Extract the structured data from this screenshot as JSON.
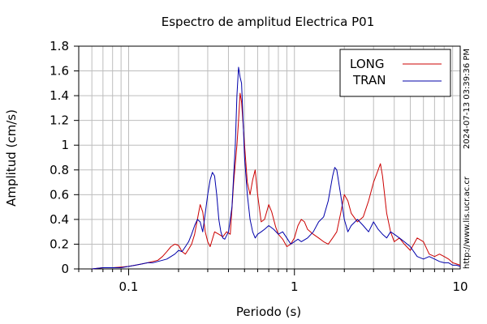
{
  "chart_data": {
    "type": "line",
    "title": "Espectro de amplitud Electrica P01",
    "xlabel": "Periodo (s)",
    "ylabel": "Amplitud (cm/s)",
    "x_scale": "log",
    "xlim": [
      0.05,
      10
    ],
    "ylim": [
      0,
      1.8
    ],
    "x_tick_labels": [
      {
        "value": 0.1,
        "label": "0.1"
      },
      {
        "value": 1,
        "label": "1"
      },
      {
        "value": 10,
        "label": "10"
      }
    ],
    "y_tick_labels": [
      "0",
      "0.2",
      "0.4",
      "0.6",
      "0.8",
      "1",
      "1.2",
      "1.4",
      "1.6",
      "1.8"
    ],
    "grid": true,
    "legend_position": "top-right",
    "side_annotations": {
      "timestamp": "2024-07-13 03:39:36 PM",
      "url": "http://www.lis.ucr.ac.cr"
    },
    "series": [
      {
        "name": "LONG",
        "color": "#cc0000",
        "points": [
          [
            0.06,
            0.0
          ],
          [
            0.07,
            0.01
          ],
          [
            0.08,
            0.01
          ],
          [
            0.09,
            0.015
          ],
          [
            0.1,
            0.02
          ],
          [
            0.11,
            0.03
          ],
          [
            0.12,
            0.04
          ],
          [
            0.13,
            0.05
          ],
          [
            0.14,
            0.06
          ],
          [
            0.15,
            0.07
          ],
          [
            0.16,
            0.1
          ],
          [
            0.17,
            0.14
          ],
          [
            0.18,
            0.18
          ],
          [
            0.19,
            0.2
          ],
          [
            0.2,
            0.19
          ],
          [
            0.21,
            0.14
          ],
          [
            0.22,
            0.12
          ],
          [
            0.23,
            0.16
          ],
          [
            0.24,
            0.2
          ],
          [
            0.25,
            0.28
          ],
          [
            0.26,
            0.4
          ],
          [
            0.27,
            0.52
          ],
          [
            0.28,
            0.46
          ],
          [
            0.29,
            0.3
          ],
          [
            0.3,
            0.22
          ],
          [
            0.31,
            0.18
          ],
          [
            0.33,
            0.3
          ],
          [
            0.35,
            0.28
          ],
          [
            0.37,
            0.26
          ],
          [
            0.39,
            0.3
          ],
          [
            0.41,
            0.28
          ],
          [
            0.43,
            0.7
          ],
          [
            0.45,
            1.0
          ],
          [
            0.46,
            1.2
          ],
          [
            0.47,
            1.42
          ],
          [
            0.48,
            1.35
          ],
          [
            0.5,
            1.0
          ],
          [
            0.52,
            0.7
          ],
          [
            0.54,
            0.6
          ],
          [
            0.56,
            0.72
          ],
          [
            0.58,
            0.8
          ],
          [
            0.6,
            0.6
          ],
          [
            0.63,
            0.38
          ],
          [
            0.66,
            0.4
          ],
          [
            0.7,
            0.52
          ],
          [
            0.73,
            0.46
          ],
          [
            0.77,
            0.34
          ],
          [
            0.8,
            0.28
          ],
          [
            0.85,
            0.24
          ],
          [
            0.9,
            0.18
          ],
          [
            0.95,
            0.2
          ],
          [
            1.0,
            0.25
          ],
          [
            1.05,
            0.35
          ],
          [
            1.1,
            0.4
          ],
          [
            1.15,
            0.38
          ],
          [
            1.2,
            0.32
          ],
          [
            1.3,
            0.28
          ],
          [
            1.4,
            0.25
          ],
          [
            1.5,
            0.22
          ],
          [
            1.6,
            0.2
          ],
          [
            1.7,
            0.25
          ],
          [
            1.8,
            0.3
          ],
          [
            1.9,
            0.45
          ],
          [
            2.0,
            0.6
          ],
          [
            2.1,
            0.55
          ],
          [
            2.2,
            0.45
          ],
          [
            2.4,
            0.38
          ],
          [
            2.6,
            0.42
          ],
          [
            2.8,
            0.55
          ],
          [
            3.0,
            0.7
          ],
          [
            3.2,
            0.8
          ],
          [
            3.3,
            0.85
          ],
          [
            3.4,
            0.75
          ],
          [
            3.6,
            0.45
          ],
          [
            3.8,
            0.3
          ],
          [
            4.0,
            0.22
          ],
          [
            4.3,
            0.25
          ],
          [
            4.6,
            0.2
          ],
          [
            5.0,
            0.15
          ],
          [
            5.5,
            0.25
          ],
          [
            6.0,
            0.22
          ],
          [
            6.5,
            0.12
          ],
          [
            7.0,
            0.1
          ],
          [
            7.5,
            0.12
          ],
          [
            8.0,
            0.1
          ],
          [
            8.5,
            0.08
          ],
          [
            9.0,
            0.05
          ],
          [
            9.5,
            0.04
          ],
          [
            10.0,
            0.03
          ]
        ]
      },
      {
        "name": "TRAN",
        "color": "#0000aa",
        "points": [
          [
            0.06,
            0.0
          ],
          [
            0.07,
            0.01
          ],
          [
            0.08,
            0.01
          ],
          [
            0.09,
            0.01
          ],
          [
            0.1,
            0.02
          ],
          [
            0.11,
            0.03
          ],
          [
            0.12,
            0.04
          ],
          [
            0.13,
            0.05
          ],
          [
            0.14,
            0.05
          ],
          [
            0.15,
            0.06
          ],
          [
            0.16,
            0.07
          ],
          [
            0.17,
            0.08
          ],
          [
            0.18,
            0.1
          ],
          [
            0.19,
            0.12
          ],
          [
            0.2,
            0.15
          ],
          [
            0.21,
            0.14
          ],
          [
            0.22,
            0.18
          ],
          [
            0.23,
            0.22
          ],
          [
            0.24,
            0.28
          ],
          [
            0.25,
            0.35
          ],
          [
            0.26,
            0.4
          ],
          [
            0.27,
            0.38
          ],
          [
            0.28,
            0.3
          ],
          [
            0.29,
            0.45
          ],
          [
            0.3,
            0.6
          ],
          [
            0.31,
            0.72
          ],
          [
            0.32,
            0.78
          ],
          [
            0.33,
            0.75
          ],
          [
            0.34,
            0.6
          ],
          [
            0.35,
            0.4
          ],
          [
            0.36,
            0.3
          ],
          [
            0.37,
            0.25
          ],
          [
            0.38,
            0.24
          ],
          [
            0.4,
            0.3
          ],
          [
            0.42,
            0.5
          ],
          [
            0.44,
            1.0
          ],
          [
            0.45,
            1.4
          ],
          [
            0.46,
            1.63
          ],
          [
            0.47,
            1.55
          ],
          [
            0.48,
            1.5
          ],
          [
            0.49,
            1.2
          ],
          [
            0.5,
            0.9
          ],
          [
            0.52,
            0.6
          ],
          [
            0.54,
            0.4
          ],
          [
            0.56,
            0.3
          ],
          [
            0.58,
            0.25
          ],
          [
            0.6,
            0.28
          ],
          [
            0.63,
            0.3
          ],
          [
            0.66,
            0.32
          ],
          [
            0.7,
            0.35
          ],
          [
            0.75,
            0.32
          ],
          [
            0.8,
            0.28
          ],
          [
            0.85,
            0.3
          ],
          [
            0.9,
            0.25
          ],
          [
            0.95,
            0.2
          ],
          [
            1.0,
            0.22
          ],
          [
            1.05,
            0.24
          ],
          [
            1.1,
            0.22
          ],
          [
            1.2,
            0.25
          ],
          [
            1.3,
            0.3
          ],
          [
            1.4,
            0.38
          ],
          [
            1.5,
            0.42
          ],
          [
            1.6,
            0.55
          ],
          [
            1.7,
            0.75
          ],
          [
            1.75,
            0.82
          ],
          [
            1.8,
            0.8
          ],
          [
            1.9,
            0.6
          ],
          [
            2.0,
            0.4
          ],
          [
            2.1,
            0.3
          ],
          [
            2.2,
            0.35
          ],
          [
            2.4,
            0.4
          ],
          [
            2.6,
            0.35
          ],
          [
            2.8,
            0.3
          ],
          [
            3.0,
            0.38
          ],
          [
            3.2,
            0.32
          ],
          [
            3.4,
            0.28
          ],
          [
            3.6,
            0.25
          ],
          [
            3.8,
            0.3
          ],
          [
            4.0,
            0.28
          ],
          [
            4.3,
            0.25
          ],
          [
            4.6,
            0.22
          ],
          [
            5.0,
            0.18
          ],
          [
            5.5,
            0.1
          ],
          [
            6.0,
            0.08
          ],
          [
            6.5,
            0.1
          ],
          [
            7.0,
            0.08
          ],
          [
            7.5,
            0.06
          ],
          [
            8.0,
            0.05
          ],
          [
            8.5,
            0.05
          ],
          [
            9.0,
            0.03
          ],
          [
            9.5,
            0.03
          ],
          [
            10.0,
            0.02
          ]
        ]
      }
    ]
  }
}
